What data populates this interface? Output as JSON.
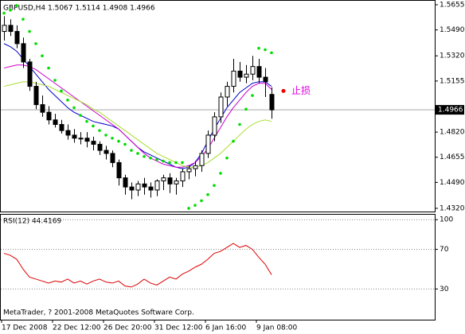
{
  "chart_data": [
    {
      "type": "candlestick",
      "title": "GBPUSD,H4  1.5067 1.5114 1.4908 1.4966",
      "categories": [
        "17 Dec 2008",
        null,
        null,
        null,
        null,
        null,
        null,
        null,
        "22 Dec 12:00",
        null,
        null,
        null,
        null,
        null,
        null,
        null,
        "26 Dec 20:00",
        null,
        null,
        null,
        null,
        null,
        null,
        null,
        "31 Dec 12:00",
        null,
        null,
        null,
        null,
        null,
        null,
        null,
        "6 Jan 16:00",
        null,
        null,
        null,
        null,
        null,
        null,
        null,
        "9 Jan 08:00",
        null,
        null
      ],
      "open": [
        1.548,
        1.552,
        1.548,
        1.54,
        1.528,
        1.512,
        1.5,
        1.495,
        1.49,
        1.487,
        1.483,
        1.48,
        1.478,
        1.478,
        1.476,
        1.474,
        1.47,
        1.468,
        1.462,
        1.452,
        1.446,
        1.444,
        1.448,
        1.446,
        1.444,
        1.45,
        1.452,
        1.448,
        1.45,
        1.456,
        1.458,
        1.46,
        1.468,
        1.48,
        1.492,
        1.505,
        1.512,
        1.522,
        1.518,
        1.52,
        1.525,
        1.518,
        1.5067
      ],
      "high": [
        1.558,
        1.556,
        1.552,
        1.544,
        1.53,
        1.515,
        1.506,
        1.499,
        1.494,
        1.49,
        1.487,
        1.484,
        1.482,
        1.482,
        1.479,
        1.476,
        1.473,
        1.47,
        1.464,
        1.454,
        1.449,
        1.45,
        1.452,
        1.449,
        1.451,
        1.454,
        1.455,
        1.452,
        1.458,
        1.46,
        1.463,
        1.47,
        1.483,
        1.495,
        1.508,
        1.515,
        1.53,
        1.528,
        1.526,
        1.532,
        1.53,
        1.524,
        1.5114
      ],
      "low": [
        1.542,
        1.545,
        1.537,
        1.524,
        1.509,
        1.497,
        1.492,
        1.487,
        1.485,
        1.481,
        1.477,
        1.475,
        1.474,
        1.472,
        1.47,
        1.467,
        1.464,
        1.459,
        1.447,
        1.441,
        1.438,
        1.44,
        1.441,
        1.439,
        1.44,
        1.444,
        1.442,
        1.441,
        1.446,
        1.451,
        1.453,
        1.456,
        1.465,
        1.476,
        1.488,
        1.499,
        1.508,
        1.515,
        1.514,
        1.516,
        1.514,
        1.505,
        1.4908
      ],
      "close": [
        1.552,
        1.548,
        1.54,
        1.528,
        1.512,
        1.5,
        1.495,
        1.49,
        1.487,
        1.483,
        1.48,
        1.478,
        1.478,
        1.476,
        1.474,
        1.47,
        1.468,
        1.462,
        1.452,
        1.446,
        1.444,
        1.448,
        1.446,
        1.444,
        1.45,
        1.452,
        1.448,
        1.45,
        1.456,
        1.458,
        1.46,
        1.468,
        1.48,
        1.492,
        1.505,
        1.512,
        1.522,
        1.518,
        1.52,
        1.525,
        1.518,
        1.515,
        1.4966
      ],
      "sar": [
        1.56,
        1.562,
        1.565,
        1.556,
        1.548,
        1.54,
        1.532,
        1.524,
        1.516,
        1.509,
        1.503,
        1.498,
        1.493,
        1.489,
        1.486,
        1.483,
        1.48,
        1.478,
        1.476,
        1.474,
        1.47,
        1.468,
        1.466,
        1.465,
        1.464,
        1.463,
        1.462,
        1.462,
        1.462,
        1.432,
        1.434,
        1.437,
        1.441,
        1.447,
        1.455,
        1.465,
        1.476,
        1.487,
        1.497,
        1.506,
        1.537,
        1.536,
        1.534
      ],
      "sar_color": "#00dd00",
      "series": [
        {
          "color": "#0000cc",
          "values": [
            1.54,
            1.538,
            1.535,
            1.53,
            1.525,
            1.52,
            1.515,
            1.51,
            1.506,
            1.502,
            1.498,
            1.495,
            1.493,
            1.491,
            1.489,
            1.488,
            1.487,
            1.486,
            1.484,
            1.48,
            1.476,
            1.472,
            1.469,
            1.467,
            1.465,
            1.463,
            1.461,
            1.459,
            1.458,
            1.459,
            1.462,
            1.468,
            1.476,
            1.484,
            1.491,
            1.498,
            1.503,
            1.508,
            1.511,
            1.514,
            1.515,
            1.515,
            1.512
          ]
        },
        {
          "color": "#cc00cc",
          "values": [
            1.524,
            1.525,
            1.526,
            1.526,
            1.525,
            1.523,
            1.52,
            1.517,
            1.514,
            1.511,
            1.508,
            1.505,
            1.502,
            1.499,
            1.496,
            1.493,
            1.49,
            1.487,
            1.484,
            1.48,
            1.476,
            1.472,
            1.468,
            1.465,
            1.463,
            1.461,
            1.46,
            1.459,
            1.459,
            1.46,
            1.462,
            1.466,
            1.471,
            1.478,
            1.485,
            1.492,
            1.498,
            1.503,
            1.508,
            1.512,
            1.514,
            1.514,
            1.51
          ]
        },
        {
          "color": "#aadd33",
          "values": [
            1.512,
            1.513,
            1.514,
            1.515,
            1.515,
            1.514,
            1.513,
            1.512,
            1.51,
            1.508,
            1.506,
            1.504,
            1.502,
            1.5,
            1.497,
            1.495,
            1.492,
            1.489,
            1.486,
            1.483,
            1.48,
            1.477,
            1.474,
            1.471,
            1.468,
            1.466,
            1.464,
            1.462,
            1.46,
            1.459,
            1.459,
            1.46,
            1.462,
            1.465,
            1.468,
            1.472,
            1.476,
            1.48,
            1.484,
            1.487,
            1.489,
            1.49,
            1.489
          ]
        }
      ],
      "ylim": [
        1.4299,
        1.5681
      ],
      "yticks": [
        1.5655,
        {
          "value": 1.549,
          "label": "1.5490"
        },
        {
          "value": 1.532,
          "label": "1.5320"
        },
        1.5155,
        {
          "value": 1.482,
          "label": "1.4820"
        },
        1.4655,
        {
          "value": 1.449,
          "label": "1.4490"
        },
        {
          "value": 1.432,
          "label": "1.4320"
        }
      ],
      "last_price": 1.4966,
      "annotation": {
        "text": "止损",
        "y": 1.509,
        "color": "#e000e0"
      }
    },
    {
      "type": "line",
      "title": "RSI(12) 44.4169",
      "color": "#dd0000",
      "values": [
        66,
        64,
        60,
        50,
        42,
        40,
        38,
        36,
        38,
        37,
        40,
        36,
        38,
        35,
        38,
        40,
        37,
        36,
        38,
        33,
        32,
        35,
        40,
        36,
        34,
        38,
        42,
        40,
        45,
        48,
        52,
        55,
        60,
        66,
        68,
        72,
        76,
        72,
        74,
        70,
        62,
        55,
        44.4169
      ],
      "ylim": [
        -1,
        105
      ],
      "yticks": [
        30,
        70,
        100
      ]
    }
  ],
  "footer": "MetaTrader, ? 2001-2008 MetaQuotes Software Corp."
}
